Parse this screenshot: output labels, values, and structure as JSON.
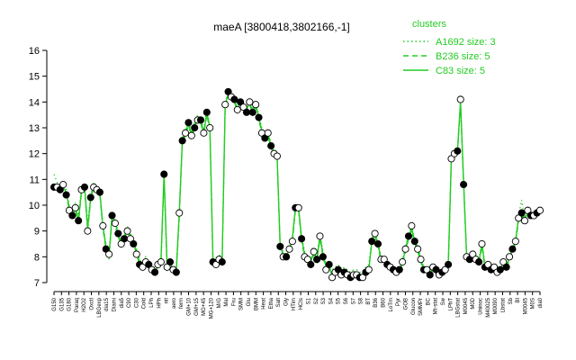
{
  "chart_data": {
    "type": "line",
    "title": "maeA [3800418,3802166,-1]",
    "xlabel": "",
    "ylabel": "",
    "ylim": [
      7,
      16
    ],
    "yticks": [
      7,
      8,
      9,
      10,
      11,
      12,
      13,
      14,
      15,
      16
    ],
    "grid": false,
    "legend": {
      "placement": "top-right",
      "title": "clusters",
      "entries": [
        {
          "label": "A1692 size: 3",
          "style": "dotted",
          "color": "#22cc22"
        },
        {
          "label": "B236 size: 5",
          "style": "dashed",
          "color": "#22cc22"
        },
        {
          "label": "C83 size: 5",
          "style": "solid",
          "color": "#22cc22"
        }
      ]
    },
    "x_tick_labels": [
      "G150",
      "G135",
      "G180",
      "Paraq",
      "H2O2",
      "Oxctl",
      "LBGexp",
      "dia15",
      "Diami",
      "dia5",
      "C90",
      "C30",
      "Cold",
      "LPh",
      "HPh",
      "nit",
      "aero",
      "ferm",
      "GM+10",
      "GM+15",
      "MG+45",
      "MG+120",
      "M/G",
      "Mal",
      "Fru",
      "SMM",
      "Glu",
      "BMM",
      "Heat",
      "Etha",
      "Salt",
      "Gly",
      "HTim",
      "HCIs",
      "S1",
      "S2",
      "S3",
      "S4",
      "S5",
      "S6",
      "S7",
      "S8",
      "BT",
      "B36",
      "B60",
      "LoTm",
      "Pyr",
      "GOB",
      "Glucon",
      "SMMPr",
      "BC",
      "Mt-stat",
      "Sw",
      "LPhT",
      "LBGstat",
      "M0045",
      "M0D",
      "Uninoc",
      "M40025",
      "M0090",
      "Lbstat",
      "Sb",
      "BI",
      "M0045",
      "M0S",
      "dia0"
    ],
    "x": [
      0,
      1,
      2,
      3,
      4,
      5,
      6,
      7,
      8,
      9,
      10,
      11,
      12,
      13,
      14,
      15,
      16,
      17,
      18,
      19,
      20,
      21,
      22,
      23,
      24,
      25,
      26,
      27,
      28,
      29,
      30,
      31,
      32,
      33,
      34,
      35,
      36,
      37,
      38,
      39,
      40,
      41,
      42,
      43,
      44,
      45,
      46,
      47,
      48,
      49,
      50,
      51,
      52,
      53,
      54,
      55,
      56,
      57,
      58,
      59,
      60,
      61,
      62,
      63,
      64,
      65,
      66,
      67,
      68,
      69,
      70,
      71,
      72,
      73,
      74,
      75,
      76,
      77,
      78,
      79,
      80,
      81,
      82,
      83,
      84,
      85,
      86,
      87,
      88,
      89,
      90,
      91,
      92,
      93,
      94,
      95,
      96,
      97,
      98,
      99,
      100,
      101,
      102,
      103,
      104,
      105,
      106,
      107,
      108,
      109,
      110,
      111,
      112,
      113,
      114,
      115,
      116,
      117,
      118,
      119,
      120,
      121,
      122,
      123,
      124,
      125,
      126,
      127,
      128,
      129,
      130,
      131,
      132,
      133,
      134,
      135,
      136,
      137,
      138,
      139,
      140,
      141,
      142,
      143,
      144,
      145,
      146,
      147,
      148,
      149,
      150,
      151,
      152,
      153,
      154,
      155,
      156,
      157,
      158,
      159
    ],
    "series": [
      {
        "style": "solid",
        "values": [
          10.7,
          10.8,
          10.6,
          10.7,
          10.5,
          9.9,
          9.6,
          9.9,
          9.4,
          10.6,
          10.7,
          9.1,
          10.3,
          10.8,
          10.6,
          10.5,
          9.2,
          8.4,
          8.0,
          9.6,
          9.3,
          8.9,
          8.5,
          8.8,
          9.1,
          8.8,
          8.6,
          8.2,
          7.8,
          7.6,
          7.9,
          7.7,
          7.5,
          7.4,
          7.7,
          7.9,
          11.2,
          7.6,
          7.8,
          7.5,
          7.4,
          9.7,
          12.5,
          12.8,
          13.2,
          12.7,
          13.1,
          13.4,
          13.3,
          12.8,
          13.6,
          13.0,
          7.9,
          7.7,
          8.0,
          7.8,
          13.9,
          14.3,
          14.2,
          14.1,
          13.7,
          14.0,
          13.8,
          13.7,
          14.0,
          13.6,
          13.9,
          13.4,
          12.9,
          12.6,
          12.8,
          12.3,
          12.1,
          11.9,
          8.4,
          8.1,
          8.0,
          8.3,
          8.7,
          9.9,
          9.9,
          8.7,
          8.1,
          7.9,
          7.8,
          8.2,
          7.9,
          8.8,
          8.1,
          7.6,
          7.7,
          7.2,
          7.4,
          7.5,
          7.3,
          7.4,
          7.3,
          7.2,
          7.3,
          7.3,
          7.2,
          7.2,
          7.4,
          7.5,
          8.6,
          8.9,
          8.5,
          7.9,
          7.9,
          7.7,
          7.6,
          7.5,
          7.4,
          7.5,
          7.8,
          8.3,
          8.8,
          9.1,
          8.6,
          8.3,
          7.9,
          7.5,
          7.5,
          7.3,
          7.6,
          7.5,
          7.3,
          7.4,
          7.5,
          7.7,
          11.8,
          12.0,
          12.1,
          14.0,
          10.9,
          8.0,
          7.9,
          8.1,
          7.9,
          7.8,
          8.5,
          7.6,
          7.7,
          7.5,
          7.6,
          7.4,
          7.5,
          7.8,
          7.6,
          8.0,
          8.3,
          8.6,
          9.5,
          9.7,
          9.4,
          9.8,
          9.6,
          9.6,
          9.7,
          9.9
        ]
      },
      {
        "style": "dashed",
        "values": [
          10.6,
          10.8,
          10.7,
          10.6,
          10.4,
          9.8,
          9.7,
          9.8,
          9.3,
          10.5,
          10.6,
          9.0,
          10.2,
          10.7,
          10.5,
          10.4,
          9.1,
          8.3,
          7.9,
          9.5,
          9.2,
          8.8,
          8.4,
          8.7,
          9.0,
          8.7,
          8.5,
          8.1,
          7.7,
          7.5,
          7.8,
          7.6,
          7.4,
          7.3,
          7.6,
          7.8,
          11.0,
          7.5,
          7.7,
          7.4,
          7.3,
          9.5,
          12.4,
          12.7,
          13.1,
          12.6,
          13.0,
          13.3,
          13.2,
          12.7,
          13.5,
          12.9,
          7.8,
          7.6,
          7.9,
          7.7,
          13.8,
          14.2,
          14.1,
          14.0,
          13.6,
          13.9,
          13.7,
          13.6,
          13.9,
          13.5,
          13.8,
          13.3,
          12.8,
          12.5,
          12.7,
          12.2,
          12.0,
          11.8,
          8.3,
          8.0,
          7.9,
          8.2,
          8.6,
          9.8,
          9.8,
          8.6,
          8.0,
          7.8,
          7.7,
          8.1,
          7.8,
          8.7,
          8.0,
          7.5,
          7.6,
          7.3,
          7.5,
          7.6,
          7.4,
          7.5,
          7.4,
          7.3,
          7.4,
          7.4,
          7.3,
          7.3,
          7.5,
          7.6,
          8.5,
          8.8,
          8.4,
          7.8,
          7.8,
          7.6,
          7.5,
          7.4,
          7.3,
          7.4,
          7.7,
          8.2,
          8.7,
          9.0,
          8.5,
          8.2,
          7.8,
          7.4,
          7.4,
          7.2,
          7.5,
          7.4,
          7.2,
          7.3,
          7.4,
          7.6,
          11.7,
          11.9,
          12.0,
          13.9,
          10.8,
          7.9,
          7.8,
          8.0,
          7.8,
          7.7,
          8.4,
          7.5,
          7.6,
          7.4,
          7.5,
          7.3,
          7.4,
          7.7,
          7.5,
          7.9,
          8.2,
          8.5,
          9.4,
          9.6,
          9.3,
          9.7,
          9.5,
          9.5,
          9.6,
          9.8
        ]
      },
      {
        "style": "dotted",
        "values": [
          11.2,
          10.9,
          10.5,
          10.8,
          10.6,
          10.0,
          9.5,
          10.1,
          9.6,
          10.7,
          10.8,
          9.3,
          10.4,
          10.9,
          10.7,
          10.6,
          9.3,
          8.5,
          8.1,
          9.7,
          9.4,
          9.0,
          8.6,
          8.9,
          9.2,
          8.9,
          8.7,
          8.3,
          7.9,
          7.7,
          8.0,
          7.8,
          7.6,
          7.5,
          7.8,
          8.0,
          11.3,
          7.7,
          7.9,
          7.6,
          7.5,
          9.8,
          12.6,
          12.9,
          13.3,
          12.8,
          13.2,
          13.5,
          13.4,
          12.9,
          13.7,
          13.1,
          8.0,
          7.8,
          8.1,
          7.9,
          14.0,
          14.4,
          14.3,
          14.2,
          13.8,
          14.1,
          13.9,
          13.8,
          14.1,
          13.7,
          14.0,
          13.5,
          13.0,
          12.7,
          12.9,
          12.4,
          12.2,
          12.0,
          8.5,
          8.2,
          8.1,
          8.4,
          8.8,
          10.0,
          10.0,
          8.8,
          8.2,
          8.0,
          7.9,
          8.3,
          8.0,
          8.9,
          8.2,
          7.7,
          7.8,
          7.5,
          7.6,
          7.7,
          7.5,
          7.6,
          7.5,
          7.4,
          7.5,
          7.5,
          7.4,
          7.4,
          7.6,
          7.7,
          8.7,
          9.0,
          8.6,
          8.0,
          8.0,
          7.8,
          7.7,
          7.6,
          7.5,
          7.6,
          7.9,
          8.4,
          8.9,
          9.2,
          8.7,
          8.4,
          8.0,
          7.6,
          7.6,
          7.4,
          7.7,
          7.6,
          7.4,
          7.5,
          7.6,
          7.8,
          11.9,
          12.1,
          12.2,
          14.1,
          11.0,
          8.1,
          8.0,
          8.2,
          8.0,
          7.9,
          8.6,
          7.7,
          7.8,
          7.6,
          7.7,
          7.5,
          7.6,
          7.9,
          7.7,
          8.1,
          8.4,
          8.7,
          9.6,
          10.2,
          9.5,
          9.9,
          9.7,
          9.7,
          9.8,
          10.0
        ]
      }
    ],
    "points": {
      "values": [
        10.7,
        10.7,
        10.6,
        10.8,
        10.4,
        9.8,
        9.6,
        9.9,
        9.4,
        10.6,
        10.7,
        9.0,
        10.3,
        10.7,
        10.6,
        10.5,
        9.2,
        8.3,
        8.1,
        9.6,
        9.3,
        8.9,
        8.5,
        8.7,
        9.0,
        8.7,
        8.5,
        8.1,
        7.7,
        7.6,
        7.8,
        7.7,
        7.5,
        7.4,
        7.7,
        7.8,
        11.2,
        7.6,
        7.8,
        7.5,
        7.4,
        9.7,
        12.5,
        12.8,
        13.2,
        12.7,
        13.0,
        13.3,
        13.3,
        12.8,
        13.6,
        13.0,
        7.8,
        7.7,
        7.9,
        7.8,
        13.9,
        14.4,
        14.2,
        14.1,
        13.7,
        14.0,
        13.8,
        13.6,
        14.0,
        13.6,
        13.9,
        13.4,
        12.8,
        12.6,
        12.8,
        12.3,
        12.0,
        11.9,
        8.4,
        8.0,
        8.0,
        8.3,
        8.6,
        9.9,
        9.9,
        8.7,
        8.0,
        7.9,
        7.7,
        8.2,
        7.9,
        8.8,
        8.0,
        7.5,
        7.7,
        7.2,
        7.4,
        7.5,
        7.3,
        7.4,
        7.3,
        7.2,
        7.3,
        7.3,
        7.2,
        7.2,
        7.4,
        7.5,
        8.6,
        8.9,
        8.5,
        7.9,
        7.9,
        7.7,
        7.6,
        7.5,
        7.4,
        7.5,
        7.8,
        8.3,
        8.8,
        9.2,
        8.6,
        8.3,
        7.9,
        7.5,
        7.5,
        7.3,
        7.6,
        7.5,
        7.3,
        7.4,
        7.5,
        7.7,
        11.8,
        12.0,
        12.1,
        14.1,
        10.8,
        8.0,
        7.9,
        8.1,
        7.9,
        7.8,
        8.5,
        7.6,
        7.7,
        7.5,
        7.6,
        7.4,
        7.5,
        7.8,
        7.6,
        8.0,
        8.3,
        8.6,
        9.5,
        9.7,
        9.4,
        9.8,
        9.6,
        9.6,
        9.7,
        9.8
      ],
      "filled": [
        1,
        0,
        1,
        0,
        1,
        0,
        1,
        0,
        1,
        0,
        1,
        0,
        1,
        0,
        0,
        1,
        0,
        1,
        0,
        1,
        0,
        1,
        0,
        1,
        0,
        0,
        1,
        0,
        1,
        0,
        0,
        1,
        0,
        1,
        0,
        0,
        1,
        0,
        1,
        0,
        1,
        0,
        1,
        0,
        1,
        0,
        1,
        0,
        1,
        0,
        1,
        0,
        1,
        0,
        0,
        1,
        0,
        1,
        0,
        1,
        0,
        1,
        0,
        1,
        0,
        1,
        0,
        1,
        0,
        1,
        0,
        1,
        0,
        0,
        1,
        0,
        1,
        0,
        0,
        1,
        0,
        1,
        0,
        0,
        1,
        0,
        1,
        0,
        1,
        0,
        1,
        0,
        0,
        1,
        0,
        1,
        0,
        1,
        0,
        0,
        1,
        0,
        1,
        0,
        1,
        0,
        1,
        0,
        0,
        1,
        0,
        1,
        0,
        1,
        0,
        0,
        1,
        0,
        1,
        0,
        0,
        1,
        0,
        1,
        0,
        1,
        0,
        1,
        0,
        1,
        0,
        0,
        1,
        0,
        1,
        0,
        1,
        0,
        0,
        1,
        0,
        1,
        0,
        1,
        0,
        0,
        1,
        0,
        1,
        0,
        1,
        0,
        0,
        1,
        0,
        0,
        1,
        0,
        1,
        0
      ]
    }
  }
}
